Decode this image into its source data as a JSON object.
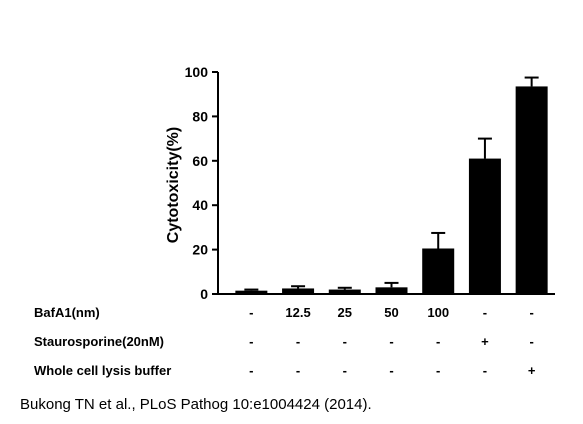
{
  "chart_data": {
    "type": "bar",
    "ylabel": "Cytotoxicity(%)",
    "ylim": [
      0,
      100
    ],
    "yticks": [
      "0",
      "20",
      "40",
      "60",
      "80",
      "100"
    ],
    "bars": [
      {
        "value": 1.5,
        "error": 0.5
      },
      {
        "value": 2.5,
        "error": 1.0
      },
      {
        "value": 2.0,
        "error": 0.8
      },
      {
        "value": 3.0,
        "error": 2.0
      },
      {
        "value": 20.5,
        "error": 7.0
      },
      {
        "value": 61.0,
        "error": 9.0
      },
      {
        "value": 93.5,
        "error": 4.0
      }
    ],
    "bar_color": "#000000",
    "grid": false,
    "conditions": [
      {
        "label": "BafA1(nm)",
        "values": [
          "-",
          "12.5",
          "25",
          "50",
          "100",
          "-",
          "-"
        ]
      },
      {
        "label": "Staurosporine(20nM)",
        "values": [
          "-",
          "-",
          "-",
          "-",
          "-",
          "+",
          "-"
        ]
      },
      {
        "label": "Whole cell lysis buffer",
        "values": [
          "-",
          "-",
          "-",
          "-",
          "-",
          "-",
          "+"
        ]
      }
    ]
  },
  "citation": "Bukong TN et al., PLoS Pathog 10:e1004424 (2014)."
}
